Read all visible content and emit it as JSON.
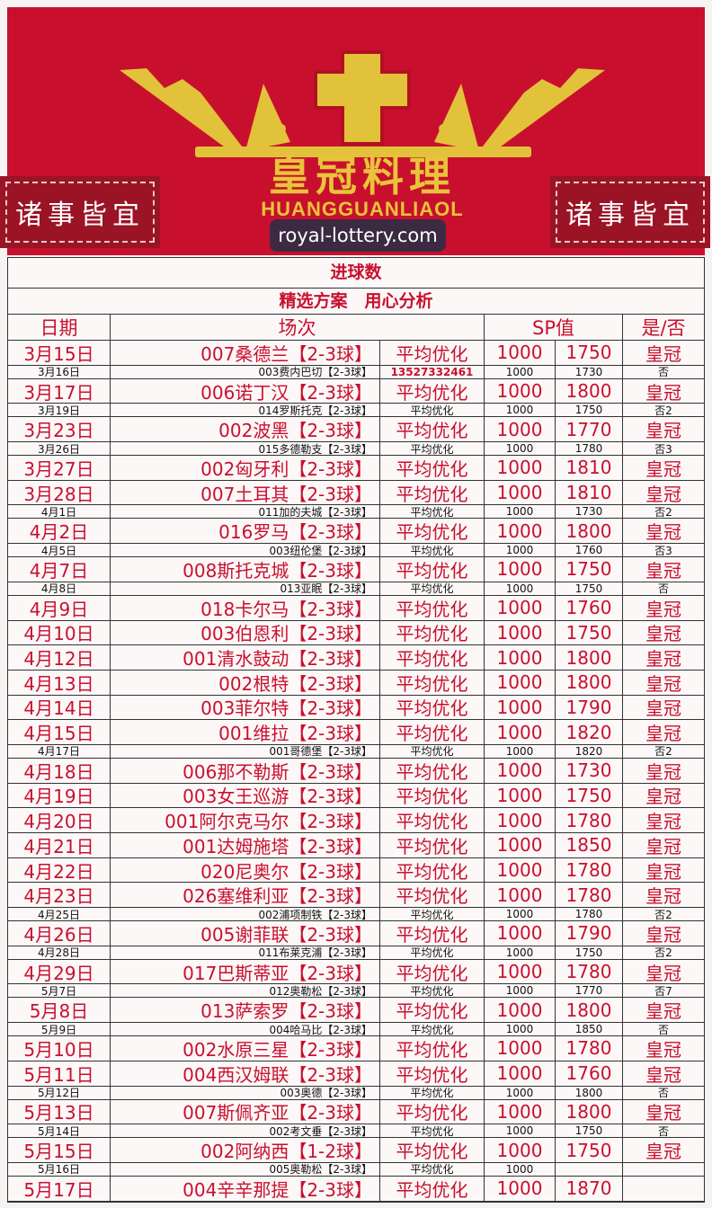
{
  "banner": {
    "title": "皇冠料理",
    "subtitle": "HUANGGUANLIAOL",
    "side_left": "诸事皆宜",
    "side_right": "诸事皆宜",
    "bg_color": "#c8102e",
    "gold_color": "#e8c43a",
    "logo_icon": "crown-icon"
  },
  "table": {
    "title": "进球数",
    "subtitle": "精选方案　用心分析",
    "headers": {
      "date": "日期",
      "match": "场次",
      "sp": "SP值",
      "result": "是/否"
    },
    "rows": [
      {
        "big": true,
        "date": "3月15日",
        "match": "007桑德兰【2-3球】",
        "note": "平均优化",
        "sp1": "1000",
        "sp2": "1750",
        "result": "皇冠"
      },
      {
        "big": false,
        "date": "3月16日",
        "match": "003费内巴切【2-3球】",
        "note": "13527332461",
        "sp1": "1000",
        "sp2": "1730",
        "result": "否"
      },
      {
        "big": true,
        "date": "3月17日",
        "match": "006诺丁汉【2-3球】",
        "note": "平均优化",
        "sp1": "1000",
        "sp2": "1800",
        "result": "皇冠"
      },
      {
        "big": false,
        "date": "3月19日",
        "match": "014罗斯托克【2-3球】",
        "note": "平均优化",
        "sp1": "1000",
        "sp2": "1750",
        "result": "否2"
      },
      {
        "big": true,
        "date": "3月23日",
        "match": "002波黑【2-3球】",
        "note": "平均优化",
        "sp1": "1000",
        "sp2": "1770",
        "result": "皇冠"
      },
      {
        "big": false,
        "date": "3月26日",
        "match": "015多德勒支【2-3球】",
        "note": "平均优化",
        "sp1": "1000",
        "sp2": "1780",
        "result": "否3"
      },
      {
        "big": true,
        "date": "3月27日",
        "match": "002匈牙利【2-3球】",
        "note": "平均优化",
        "sp1": "1000",
        "sp2": "1810",
        "result": "皇冠"
      },
      {
        "big": true,
        "date": "3月28日",
        "match": "007土耳其【2-3球】",
        "note": "平均优化",
        "sp1": "1000",
        "sp2": "1810",
        "result": "皇冠"
      },
      {
        "big": false,
        "date": "4月1日",
        "match": "011加的夫城【2-3球】",
        "note": "平均优化",
        "sp1": "1000",
        "sp2": "1730",
        "result": "否2"
      },
      {
        "big": true,
        "date": "4月2日",
        "match": "016罗马【2-3球】",
        "note": "平均优化",
        "sp1": "1000",
        "sp2": "1800",
        "result": "皇冠"
      },
      {
        "big": false,
        "date": "4月5日",
        "match": "003纽伦堡【2-3球】",
        "note": "平均优化",
        "sp1": "1000",
        "sp2": "1760",
        "result": "否3"
      },
      {
        "big": true,
        "date": "4月7日",
        "match": "008斯托克城【2-3球】",
        "note": "平均优化",
        "sp1": "1000",
        "sp2": "1750",
        "result": "皇冠"
      },
      {
        "big": false,
        "date": "4月8日",
        "match": "013亚眠【2-3球】",
        "note": "平均优化",
        "sp1": "1000",
        "sp2": "1750",
        "result": "否"
      },
      {
        "big": true,
        "date": "4月9日",
        "match": "018卡尔马【2-3球】",
        "note": "平均优化",
        "sp1": "1000",
        "sp2": "1760",
        "result": "皇冠"
      },
      {
        "big": true,
        "date": "4月10日",
        "match": "003伯恩利【2-3球】",
        "note": "平均优化",
        "sp1": "1000",
        "sp2": "1750",
        "result": "皇冠"
      },
      {
        "big": true,
        "date": "4月12日",
        "match": "001清水鼓动【2-3球】",
        "note": "平均优化",
        "sp1": "1000",
        "sp2": "1800",
        "result": "皇冠"
      },
      {
        "big": true,
        "date": "4月13日",
        "match": "002根特【2-3球】",
        "note": "平均优化",
        "sp1": "1000",
        "sp2": "1800",
        "result": "皇冠"
      },
      {
        "big": true,
        "date": "4月14日",
        "match": "003菲尔特【2-3球】",
        "note": "平均优化",
        "sp1": "1000",
        "sp2": "1790",
        "result": "皇冠"
      },
      {
        "big": true,
        "date": "4月15日",
        "match": "001维拉【2-3球】",
        "note": "平均优化",
        "sp1": "1000",
        "sp2": "1820",
        "result": "皇冠"
      },
      {
        "big": false,
        "date": "4月17日",
        "match": "001哥德堡【2-3球】",
        "note": "平均优化",
        "sp1": "1000",
        "sp2": "1820",
        "result": "否2"
      },
      {
        "big": true,
        "date": "4月18日",
        "match": "006那不勒斯【2-3球】",
        "note": "平均优化",
        "sp1": "1000",
        "sp2": "1730",
        "result": "皇冠"
      },
      {
        "big": true,
        "date": "4月19日",
        "match": "003女王巡游【2-3球】",
        "note": "平均优化",
        "sp1": "1000",
        "sp2": "1750",
        "result": "皇冠"
      },
      {
        "big": true,
        "date": "4月20日",
        "match": "001阿尔克马尔【2-3球】",
        "note": "平均优化",
        "sp1": "1000",
        "sp2": "1780",
        "result": "皇冠"
      },
      {
        "big": true,
        "date": "4月21日",
        "match": "001达姆施塔【2-3球】",
        "note": "平均优化",
        "sp1": "1000",
        "sp2": "1850",
        "result": "皇冠"
      },
      {
        "big": true,
        "date": "4月22日",
        "match": "020尼奥尔【2-3球】",
        "note": "平均优化",
        "sp1": "1000",
        "sp2": "1780",
        "result": "皇冠"
      },
      {
        "big": true,
        "date": "4月23日",
        "match": "026塞维利亚【2-3球】",
        "note": "平均优化",
        "sp1": "1000",
        "sp2": "1780",
        "result": "皇冠"
      },
      {
        "big": false,
        "date": "4月25日",
        "match": "002浦项制铁【2-3球】",
        "note": "平均优化",
        "sp1": "1000",
        "sp2": "1780",
        "result": "否2"
      },
      {
        "big": true,
        "date": "4月26日",
        "match": "005谢菲联【2-3球】",
        "note": "平均优化",
        "sp1": "1000",
        "sp2": "1790",
        "result": "皇冠"
      },
      {
        "big": false,
        "date": "4月28日",
        "match": "011布莱克浦【2-3球】",
        "note": "平均优化",
        "sp1": "1000",
        "sp2": "1750",
        "result": "否2"
      },
      {
        "big": true,
        "date": "4月29日",
        "match": "017巴斯蒂亚【2-3球】",
        "note": "平均优化",
        "sp1": "1000",
        "sp2": "1780",
        "result": "皇冠"
      },
      {
        "big": false,
        "date": "5月7日",
        "match": "012奥勒松【2-3球】",
        "note": "平均优化",
        "sp1": "1000",
        "sp2": "1770",
        "result": "否7"
      },
      {
        "big": true,
        "date": "5月8日",
        "match": "013萨索罗【2-3球】",
        "note": "平均优化",
        "sp1": "1000",
        "sp2": "1800",
        "result": "皇冠"
      },
      {
        "big": false,
        "date": "5月9日",
        "match": "004哈马比【2-3球】",
        "note": "平均优化",
        "sp1": "1000",
        "sp2": "1850",
        "result": "否"
      },
      {
        "big": true,
        "date": "5月10日",
        "match": "002水原三星【2-3球】",
        "note": "平均优化",
        "sp1": "1000",
        "sp2": "1780",
        "result": "皇冠"
      },
      {
        "big": true,
        "date": "5月11日",
        "match": "004西汉姆联【2-3球】",
        "note": "平均优化",
        "sp1": "1000",
        "sp2": "1760",
        "result": "皇冠"
      },
      {
        "big": false,
        "date": "5月12日",
        "match": "003奥德【2-3球】",
        "note": "平均优化",
        "sp1": "1000",
        "sp2": "1800",
        "result": "否"
      },
      {
        "big": true,
        "date": "5月13日",
        "match": "007斯佩齐亚【2-3球】",
        "note": "平均优化",
        "sp1": "1000",
        "sp2": "1800",
        "result": "皇冠"
      },
      {
        "big": false,
        "date": "5月14日",
        "match": "002考文垂【2-3球】",
        "note": "平均优化",
        "sp1": "1000",
        "sp2": "1750",
        "result": "否"
      },
      {
        "big": true,
        "date": "5月15日",
        "match": "002阿纳西【1-2球】",
        "note": "平均优化",
        "sp1": "1000",
        "sp2": "1750",
        "result": "皇冠"
      },
      {
        "big": false,
        "date": "5月16日",
        "match": "005奥勒松【2-3球】",
        "note": "平均优化",
        "sp1": "1000",
        "sp2": "",
        "result": ""
      },
      {
        "big": true,
        "date": "5月17日",
        "match": "004辛辛那提【2-3球】",
        "note": "平均优化",
        "sp1": "1000",
        "sp2": "1870",
        "result": ""
      }
    ]
  },
  "watermark": "royal-lottery.com"
}
